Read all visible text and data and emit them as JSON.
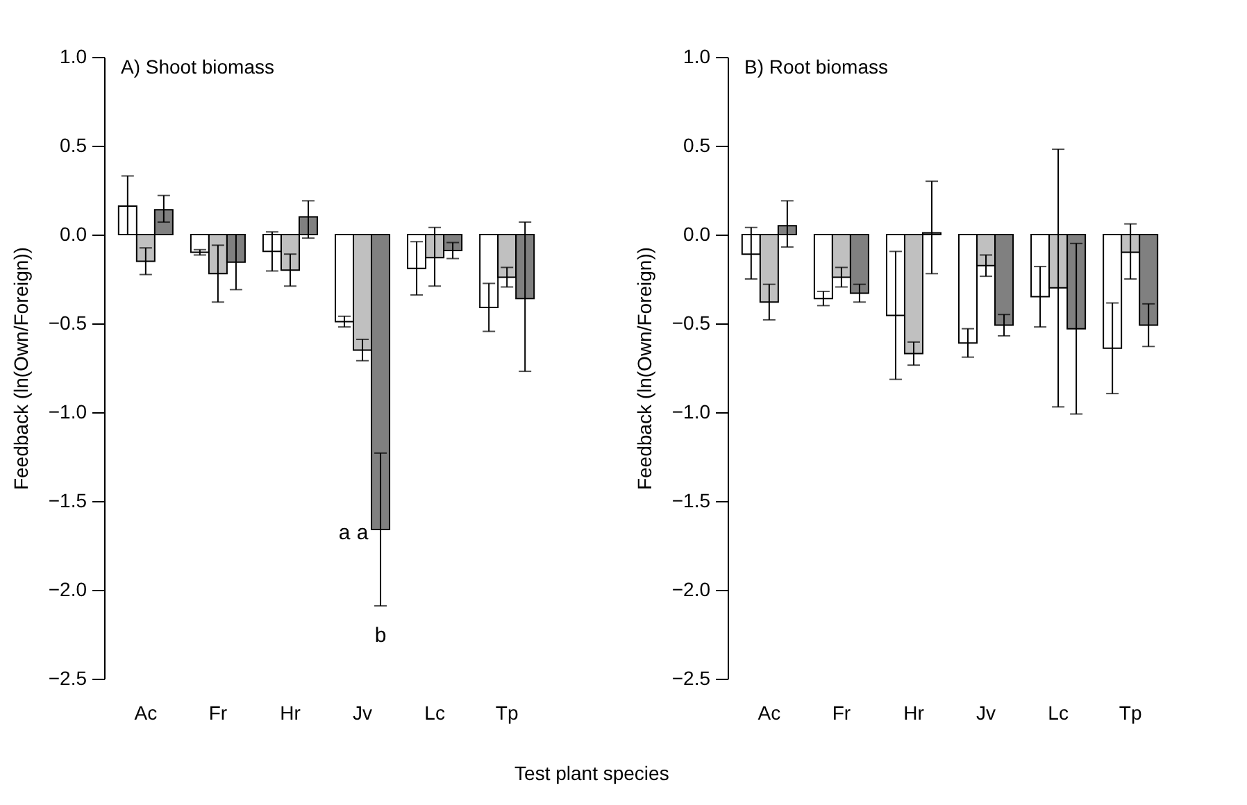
{
  "chart_data": [
    {
      "type": "bar",
      "title": "A) Shoot biomass",
      "xlabel": "Test plant species",
      "ylabel": "Feedback (ln(Own/Foreign))",
      "categories": [
        "Ac",
        "Fr",
        "Hr",
        "Jv",
        "Lc",
        "Tp"
      ],
      "ylim": [
        -2.5,
        1.0
      ],
      "yticks": [
        {
          "value": -2.5,
          "label": "−2.5"
        },
        {
          "value": -2,
          "label": "−2.0"
        },
        {
          "value": -1.5,
          "label": "−1.5"
        },
        {
          "value": -1,
          "label": "−1.0"
        },
        {
          "value": -0.5,
          "label": "−0.5"
        },
        {
          "value": 0,
          "label": "0.0"
        },
        0.5,
        {
          "value": 1,
          "label": "1.0"
        }
      ],
      "grid": false,
      "series": [
        {
          "color": "#ffffff",
          "values": [
            0.16,
            -0.1,
            -0.095,
            -0.49,
            -0.19,
            -0.41
          ],
          "errors": [
            [
              0,
              0.33
            ],
            0.015,
            0.11,
            0.03,
            0.15,
            0.135
          ]
        },
        {
          "color": "#c0c0c0",
          "values": [
            -0.15,
            -0.22,
            -0.2,
            -0.65,
            -0.13,
            -0.24
          ],
          "errors": [
            0.075,
            0.16,
            0.09,
            0.06,
            [
              -0.29,
              0.04
            ],
            0.055
          ]
        },
        {
          "color": "#808080",
          "values": [
            0.14,
            -0.155,
            0.1,
            -1.66,
            -0.09,
            -0.36
          ],
          "errors": [
            [
              0.07,
              0.22
            ],
            0.155,
            [
              -0.02,
              0.19
            ],
            0.43,
            0.045,
            [
              -0.77,
              0.07
            ]
          ]
        }
      ],
      "annotations": [
        "a",
        "a",
        "b"
      ]
    },
    {
      "type": "bar",
      "title": "B) Root biomass",
      "ylabel": "Feedback (ln(Own/Foreign))",
      "categories": [
        "Ac",
        "Fr",
        "Hr",
        "Jv",
        "Lc",
        "Tp"
      ],
      "ylim": [
        -2.5,
        1.0
      ],
      "yticks": [
        {
          "value": -2.5,
          "label": "−2.5"
        },
        {
          "value": -2,
          "label": "−2.0"
        },
        {
          "value": -1.5,
          "label": "−1.5"
        },
        {
          "value": -1,
          "label": "−1.0"
        },
        {
          "value": -0.5,
          "label": "−0.5"
        },
        {
          "value": 0,
          "label": "0.0"
        },
        0.5,
        {
          "value": 1,
          "label": "1.0"
        }
      ],
      "grid": false,
      "series": [
        {
          "color": "#ffffff",
          "values": [
            -0.11,
            -0.36,
            -0.455,
            -0.61,
            -0.35,
            -0.64
          ],
          "errors": [
            [
              -0.25,
              0.04
            ],
            0.04,
            0.36,
            0.08,
            0.17,
            0.255
          ]
        },
        {
          "color": "#c0c0c0",
          "values": [
            -0.38,
            -0.24,
            -0.67,
            -0.175,
            -0.3,
            -0.1
          ],
          "errors": [
            0.1,
            0.055,
            0.065,
            0.06,
            [
              -0.97,
              0.48
            ],
            [
              -0.25,
              0.06
            ]
          ]
        },
        {
          "color": "#808080",
          "values": [
            0.05,
            -0.33,
            0.01,
            -0.51,
            -0.53,
            -0.51
          ],
          "errors": [
            [
              -0.07,
              0.19
            ],
            0.05,
            [
              -0.22,
              0.3
            ],
            0.06,
            0.48,
            0.12
          ]
        }
      ]
    }
  ]
}
